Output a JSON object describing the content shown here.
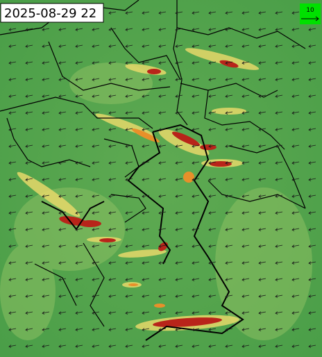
{
  "header": {
    "timestamp": "2025-08-29 22"
  },
  "legend": {
    "reference_label": "10"
  }
}
